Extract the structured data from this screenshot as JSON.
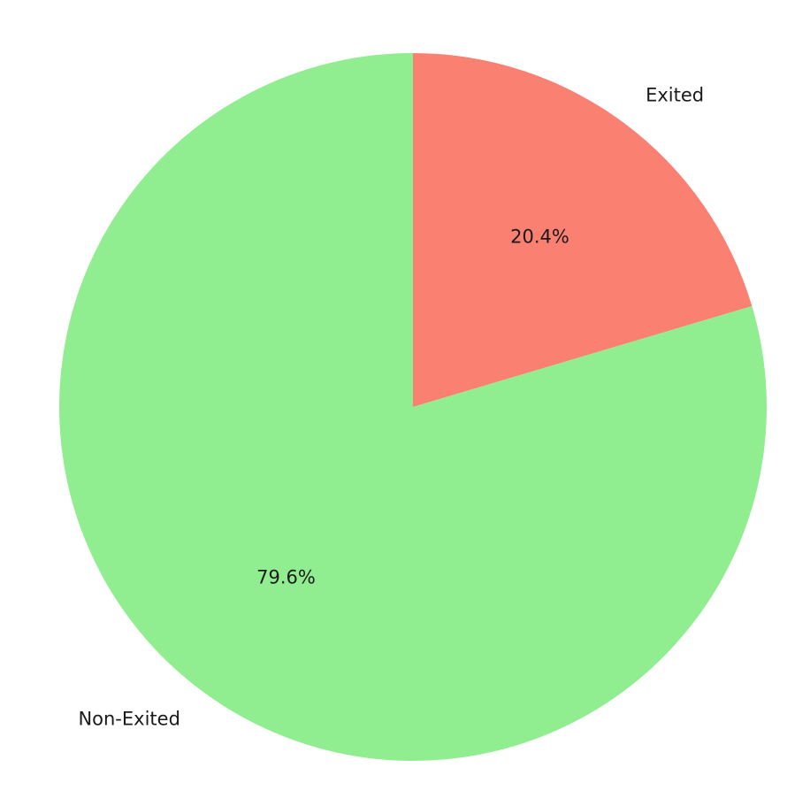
{
  "chart_data": {
    "type": "pie",
    "title": "",
    "start_angle_deg": 90,
    "direction": "clockwise",
    "slices": [
      {
        "label": "Exited",
        "value": 20.4,
        "pct_label": "20.4%",
        "color": "#fa8072"
      },
      {
        "label": "Non-Exited",
        "value": 79.6,
        "pct_label": "79.6%",
        "color": "#90ee90"
      }
    ]
  }
}
